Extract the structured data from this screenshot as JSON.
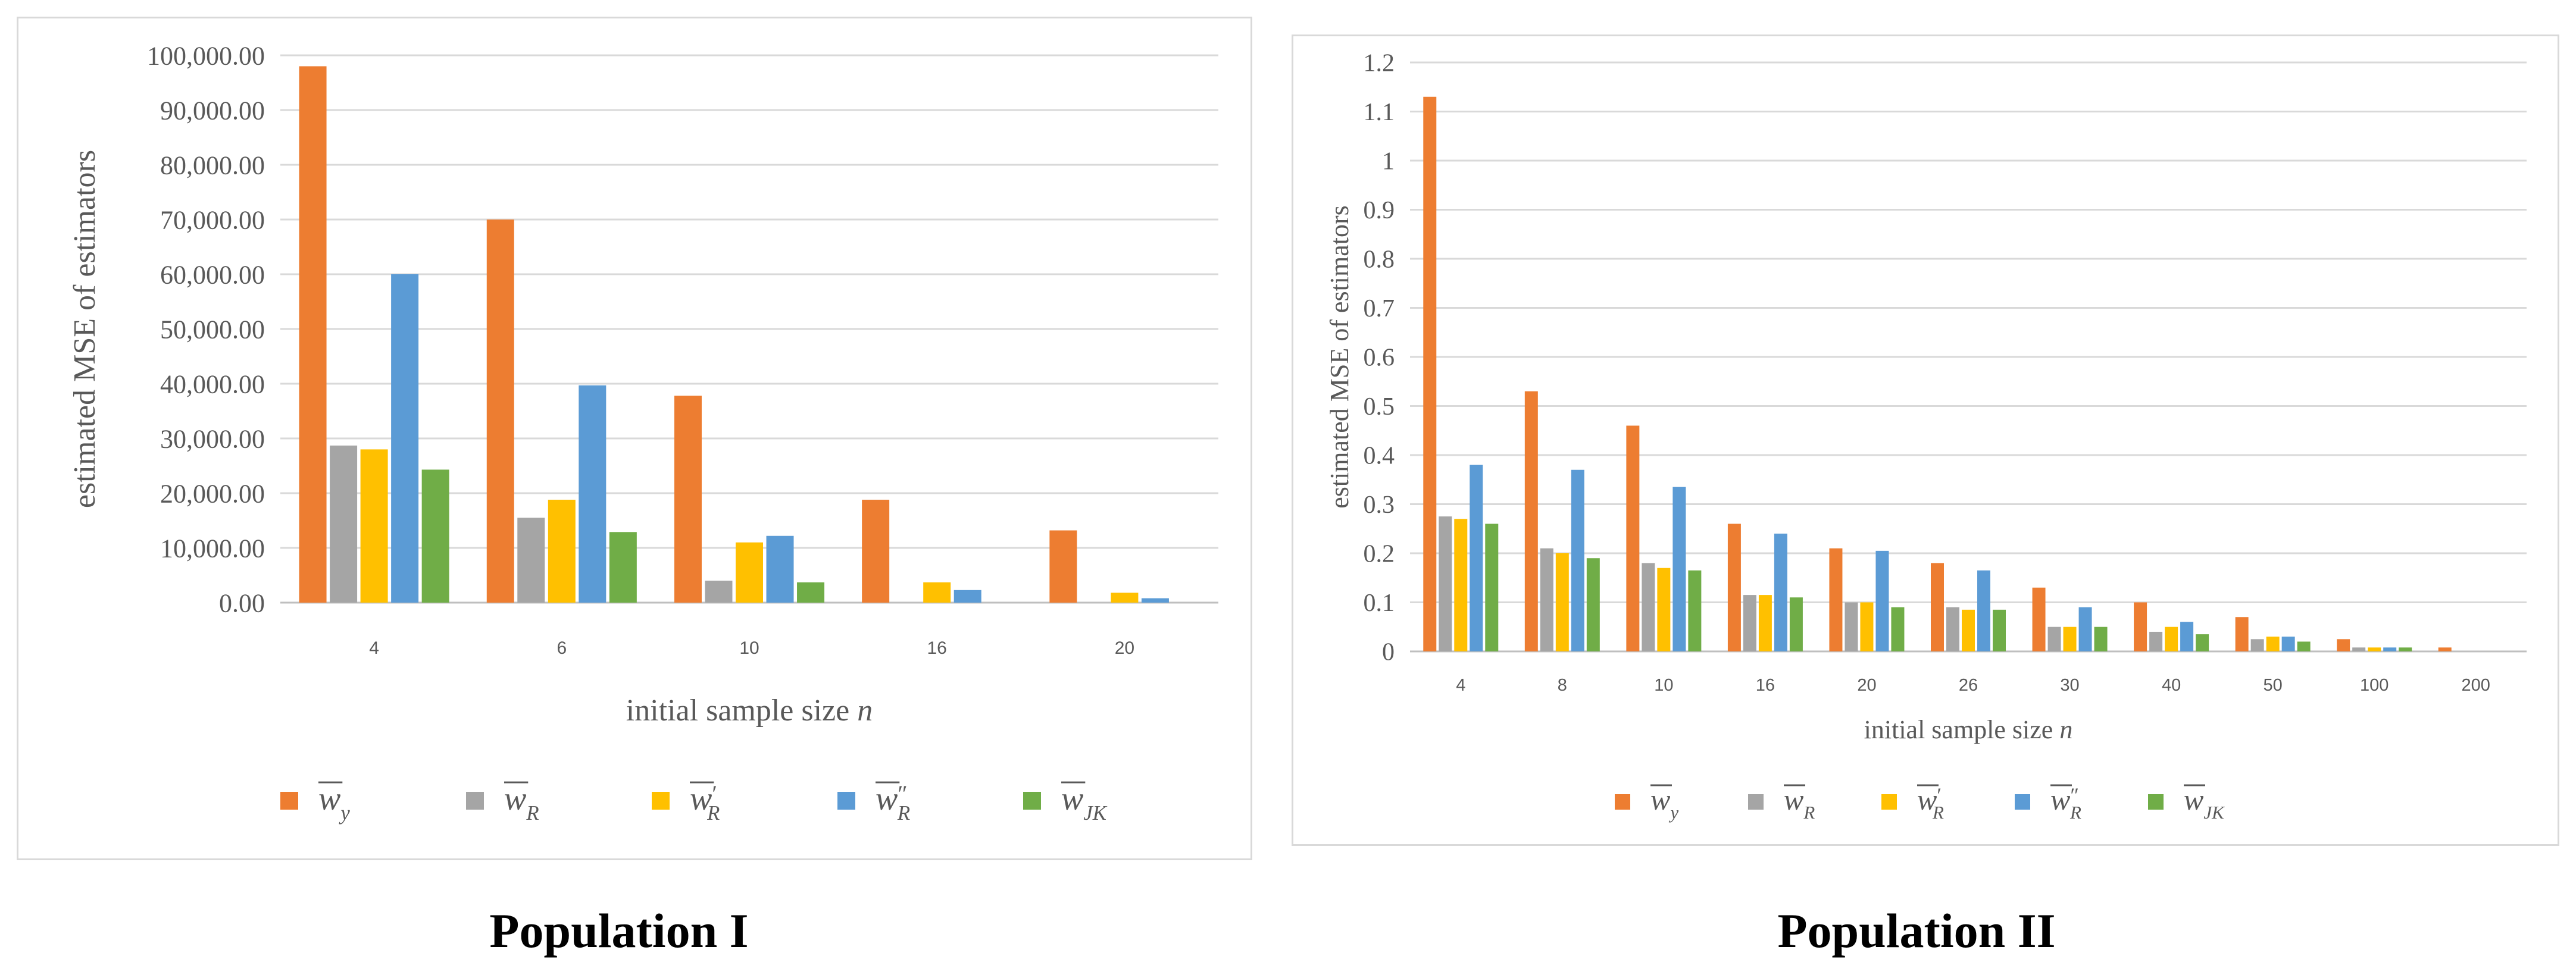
{
  "figure": {
    "titles": [
      "Population I",
      "Population II"
    ]
  },
  "legend": [
    {
      "symbol": "w",
      "sub": "y",
      "prime": "",
      "color": "#ED7D31"
    },
    {
      "symbol": "w",
      "sub": "R",
      "prime": "",
      "color": "#A5A5A5"
    },
    {
      "symbol": "w",
      "sub": "R",
      "prime": "′",
      "color": "#FFC000"
    },
    {
      "symbol": "w",
      "sub": "R",
      "prime": "″",
      "color": "#5B9BD5"
    },
    {
      "symbol": "w",
      "sub": "JK",
      "prime": "",
      "color": "#70AD47"
    }
  ],
  "chart_data": [
    {
      "type": "bar",
      "title": "Population I",
      "xlabel": "initial sample size n",
      "ylabel": "estimated MSE of estimators",
      "ylim": [
        0,
        100000
      ],
      "ytick_step": 10000,
      "ytick_labels": [
        "0.00",
        "10,000.00",
        "20,000.00",
        "30,000.00",
        "40,000.00",
        "50,000.00",
        "60,000.00",
        "70,000.00",
        "80,000.00",
        "90,000.00",
        "100,000.00"
      ],
      "categories": [
        "4",
        "6",
        "10",
        "16",
        "20"
      ],
      "series": [
        {
          "name": "w_y",
          "values": [
            98000,
            70000,
            37800,
            18800,
            13200
          ]
        },
        {
          "name": "w_R",
          "values": [
            28700,
            15500,
            4000,
            0,
            0
          ]
        },
        {
          "name": "w_R'",
          "values": [
            28000,
            18800,
            11000,
            3700,
            1800
          ]
        },
        {
          "name": "w_R''",
          "values": [
            60000,
            39700,
            12200,
            2300,
            800
          ]
        },
        {
          "name": "w_JK",
          "values": [
            24300,
            12900,
            3700,
            0,
            0
          ]
        }
      ]
    },
    {
      "type": "bar",
      "title": "Population II",
      "xlabel": "initial sample size n",
      "ylabel": "estimated MSE of estimators",
      "ylim": [
        0,
        1.2
      ],
      "ytick_step": 0.1,
      "ytick_labels": [
        "0",
        "0.1",
        "0.2",
        "0.3",
        "0.4",
        "0.5",
        "0.6",
        "0.7",
        "0.8",
        "0.9",
        "1",
        "1.1",
        "1.2"
      ],
      "categories": [
        "4",
        "8",
        "10",
        "16",
        "20",
        "26",
        "30",
        "40",
        "50",
        "100",
        "200"
      ],
      "series": [
        {
          "name": "w_y",
          "values": [
            1.13,
            0.53,
            0.46,
            0.26,
            0.21,
            0.18,
            0.13,
            0.1,
            0.07,
            0.025,
            0.008
          ]
        },
        {
          "name": "w_R",
          "values": [
            0.275,
            0.21,
            0.18,
            0.115,
            0.1,
            0.09,
            0.05,
            0.04,
            0.025,
            0.008,
            0
          ]
        },
        {
          "name": "w_R'",
          "values": [
            0.27,
            0.2,
            0.17,
            0.115,
            0.1,
            0.085,
            0.05,
            0.05,
            0.03,
            0.008,
            0
          ]
        },
        {
          "name": "w_R''",
          "values": [
            0.38,
            0.37,
            0.335,
            0.24,
            0.205,
            0.165,
            0.09,
            0.06,
            0.03,
            0.008,
            0
          ]
        },
        {
          "name": "w_JK",
          "values": [
            0.26,
            0.19,
            0.165,
            0.11,
            0.09,
            0.085,
            0.05,
            0.035,
            0.02,
            0.008,
            0
          ]
        }
      ]
    }
  ]
}
